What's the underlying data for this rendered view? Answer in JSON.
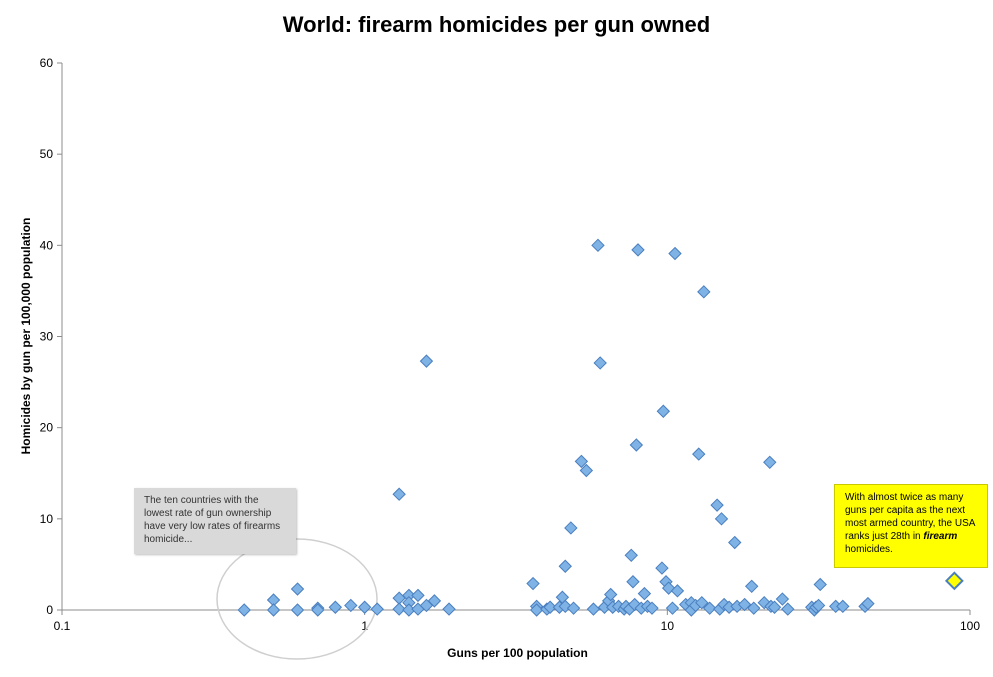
{
  "chart_data": {
    "type": "scatter",
    "title": "World: firearm homicides per gun owned",
    "xlabel": "Guns per 100 population",
    "ylabel": "Homicides by gun per 100,000 population",
    "xscale": "log",
    "xlim": [
      0.1,
      100
    ],
    "ylim": [
      0,
      60
    ],
    "x_ticks": [
      "0.1",
      "1",
      "10",
      "100"
    ],
    "y_ticks": [
      "0",
      "10",
      "20",
      "30",
      "40",
      "50",
      "60"
    ],
    "grid": false,
    "colors": {
      "points": "#7fb2e5",
      "point_stroke": "#4a7fbf",
      "highlight": "#ffff00",
      "highlight_stroke": "#4a7fbf"
    },
    "points": [
      [
        0.4,
        0.0
      ],
      [
        0.5,
        1.1
      ],
      [
        0.5,
        0.0
      ],
      [
        0.6,
        2.3
      ],
      [
        0.6,
        0.0
      ],
      [
        0.7,
        0.2
      ],
      [
        0.7,
        0.0
      ],
      [
        0.8,
        0.3
      ],
      [
        0.9,
        0.5
      ],
      [
        1.0,
        0.3
      ],
      [
        1.1,
        0.1
      ],
      [
        1.3,
        12.7
      ],
      [
        1.3,
        1.3
      ],
      [
        1.3,
        0.1
      ],
      [
        1.4,
        1.6
      ],
      [
        1.4,
        0.8
      ],
      [
        1.4,
        0.0
      ],
      [
        1.5,
        1.6
      ],
      [
        1.5,
        0.1
      ],
      [
        1.6,
        27.3
      ],
      [
        1.6,
        0.5
      ],
      [
        1.7,
        1.0
      ],
      [
        1.9,
        0.1
      ],
      [
        3.6,
        2.9
      ],
      [
        3.7,
        0.4
      ],
      [
        3.7,
        0.0
      ],
      [
        4.0,
        0.1
      ],
      [
        4.1,
        0.3
      ],
      [
        4.4,
        0.3
      ],
      [
        4.5,
        1.4
      ],
      [
        4.6,
        4.8
      ],
      [
        4.6,
        0.4
      ],
      [
        4.8,
        9.0
      ],
      [
        4.9,
        0.2
      ],
      [
        5.2,
        16.3
      ],
      [
        5.4,
        15.3
      ],
      [
        5.7,
        0.1
      ],
      [
        5.9,
        40.0
      ],
      [
        6.0,
        27.1
      ],
      [
        6.2,
        0.3
      ],
      [
        6.4,
        1.0
      ],
      [
        6.5,
        1.7
      ],
      [
        6.6,
        0.3
      ],
      [
        6.9,
        0.4
      ],
      [
        7.2,
        0.1
      ],
      [
        7.3,
        0.4
      ],
      [
        7.5,
        0.1
      ],
      [
        7.6,
        6.0
      ],
      [
        7.7,
        3.1
      ],
      [
        7.8,
        0.6
      ],
      [
        7.9,
        18.1
      ],
      [
        8.0,
        39.5
      ],
      [
        8.2,
        0.2
      ],
      [
        8.4,
        1.8
      ],
      [
        8.6,
        0.4
      ],
      [
        8.9,
        0.2
      ],
      [
        9.6,
        4.6
      ],
      [
        9.7,
        21.8
      ],
      [
        9.9,
        3.1
      ],
      [
        10.1,
        2.4
      ],
      [
        10.4,
        0.2
      ],
      [
        10.6,
        39.1
      ],
      [
        10.8,
        2.1
      ],
      [
        11.5,
        0.6
      ],
      [
        12.0,
        0.8
      ],
      [
        12.0,
        0.0
      ],
      [
        12.4,
        0.5
      ],
      [
        12.7,
        17.1
      ],
      [
        13.0,
        0.8
      ],
      [
        13.2,
        34.9
      ],
      [
        13.8,
        0.2
      ],
      [
        14.6,
        11.5
      ],
      [
        14.9,
        0.1
      ],
      [
        15.1,
        10.0
      ],
      [
        15.4,
        0.6
      ],
      [
        16.0,
        0.3
      ],
      [
        16.7,
        7.4
      ],
      [
        17.0,
        0.4
      ],
      [
        18.0,
        0.6
      ],
      [
        19.0,
        2.6
      ],
      [
        19.3,
        0.2
      ],
      [
        20.9,
        0.8
      ],
      [
        21.8,
        16.2
      ],
      [
        22.0,
        0.4
      ],
      [
        22.6,
        0.3
      ],
      [
        24.0,
        1.2
      ],
      [
        25.0,
        0.1
      ],
      [
        30.0,
        0.3
      ],
      [
        30.6,
        0.0
      ],
      [
        31.0,
        0.3
      ],
      [
        31.6,
        0.5
      ],
      [
        32.0,
        2.8
      ],
      [
        36.0,
        0.4
      ],
      [
        38.0,
        0.4
      ],
      [
        45.0,
        0.4
      ],
      [
        46.0,
        0.7
      ]
    ],
    "highlight_point": [
      88.8,
      3.2
    ],
    "annotations": {
      "left_note": "The ten countries with the lowest rate of gun ownership have very low rates of firearms homicide...",
      "right_note_pre": "With almost twice as many guns per capita as the next most armed country, the USA ranks just 28th in ",
      "right_note_em": "firearm",
      "right_note_post": " homicides."
    }
  }
}
